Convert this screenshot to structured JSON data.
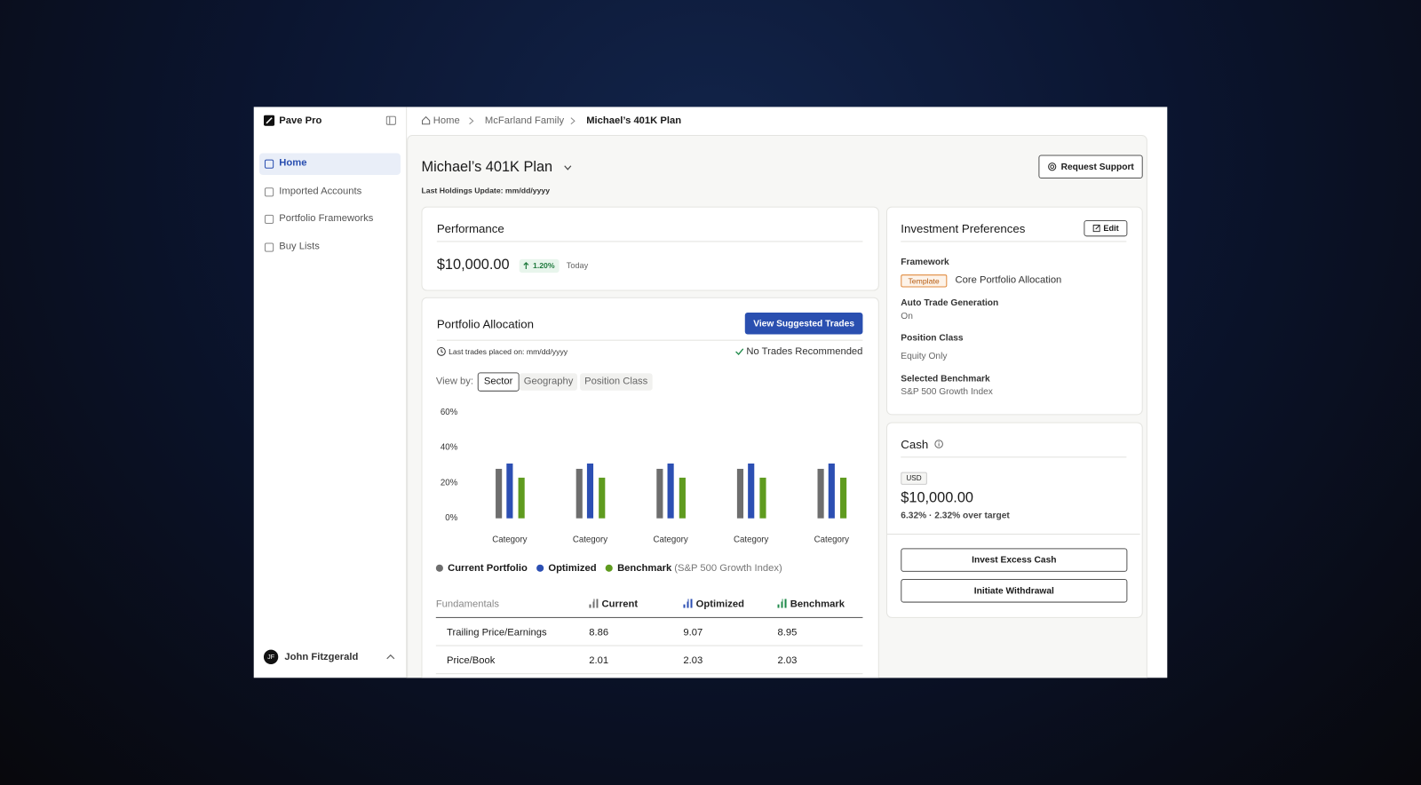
{
  "sidebar": {
    "brand": "Pave Pro",
    "nav": [
      "Home",
      "Imported Accounts",
      "Portfolio Frameworks",
      "Buy Lists"
    ],
    "user": {
      "initials": "JF",
      "name": "John Fitzgerald"
    }
  },
  "breadcrumb": [
    "Home",
    "McFarland Family",
    "Michael’s 401K Plan"
  ],
  "header": {
    "title": "Michael’s 401K Plan",
    "subtitle": "Last Holdings Update: mm/dd/yyyy",
    "support": "Request Support"
  },
  "performance": {
    "title": "Performance",
    "value": "$10,000.00",
    "change": "1.20%",
    "period": "Today"
  },
  "allocation": {
    "title": "Portfolio Allocation",
    "button": "View Suggested Trades",
    "last_trades": "Last trades placed on: mm/dd/yyyy",
    "status": "No Trades Recommended",
    "view_by_label": "View by:",
    "view_options": [
      "Sector",
      "Geography",
      "Position Class"
    ],
    "benchmark_note": "(S&P 500 Growth Index)"
  },
  "chart_data": {
    "type": "bar",
    "categories": [
      "Category",
      "Category",
      "Category",
      "Category",
      "Category"
    ],
    "series": [
      {
        "name": "Current Portfolio",
        "color": "#6e6e6e",
        "values": [
          28,
          28,
          28,
          28,
          28
        ]
      },
      {
        "name": "Optimized",
        "color": "#2c4fb3",
        "values": [
          31,
          31,
          31,
          31,
          31
        ]
      },
      {
        "name": "Benchmark",
        "color": "#5f9b1f",
        "values": [
          23,
          23,
          23,
          23,
          23
        ]
      }
    ],
    "ylim": [
      0,
      60
    ],
    "yticks": [
      {
        "value": 0,
        "label": "0%"
      },
      {
        "value": 20,
        "label": "20%"
      },
      {
        "value": 40,
        "label": "40%"
      },
      {
        "value": 60,
        "label": "60%"
      }
    ],
    "grid": false
  },
  "table": {
    "headers": [
      "Fundamentals",
      "Current",
      "Optimized",
      "Benchmark"
    ],
    "rows": [
      [
        "Trailing Price/Earnings",
        "8.86",
        "9.07",
        "8.95"
      ],
      [
        "Price/Book",
        "2.01",
        "2.03",
        "2.03"
      ]
    ]
  },
  "preferences": {
    "title": "Investment Preferences",
    "edit": "Edit",
    "items": [
      {
        "label": "Framework",
        "badge": "Template",
        "value": "Core Portfolio Allocation"
      },
      {
        "label": "Auto Trade Generation",
        "value": "On"
      },
      {
        "label": "Position Class",
        "value": "Equity Only"
      },
      {
        "label": "Selected Benchmark",
        "value": "S&P 500 Growth Index"
      }
    ]
  },
  "cash": {
    "title": "Cash",
    "currency": "USD",
    "value": "$10,000.00",
    "note": "6.32% · 2.32% over target",
    "buttons": [
      "Invest Excess Cash",
      "Initiate Withdrawal"
    ]
  }
}
